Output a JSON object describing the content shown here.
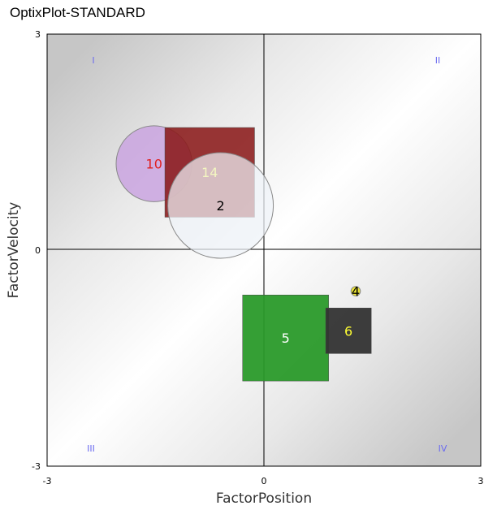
{
  "title": "OptixPlot-STANDARD",
  "chart_data": {
    "type": "scatter",
    "xlabel": "FactorPosition",
    "ylabel": "FactorVelocity",
    "xlim": [
      -3,
      3
    ],
    "ylim": [
      -3,
      3
    ],
    "xticks": [
      "-3",
      "0",
      "3"
    ],
    "yticks": [
      "3",
      "0",
      "-3"
    ],
    "quadrants": [
      "I",
      "II",
      "III",
      "IV"
    ],
    "points": [
      {
        "label": "10",
        "shape": "circle",
        "x": -1.52,
        "y": 1.2,
        "size": 1.05,
        "fill": "#c8a0e0",
        "label_color": "#e02020"
      },
      {
        "label": "14",
        "shape": "square",
        "x": -0.75,
        "y": 1.08,
        "size": 1.24,
        "fill": "#8b1a1a",
        "label_color": "#ffff33"
      },
      {
        "label": "2",
        "shape": "circle",
        "x": -0.6,
        "y": 0.62,
        "size": 1.46,
        "fill": "#eef2f8",
        "label_color": "#000000"
      },
      {
        "label": "4",
        "shape": "circle",
        "x": 1.27,
        "y": -0.57,
        "size": 0.13,
        "fill": "#e8e020",
        "label_color": "#000000"
      },
      {
        "label": "5",
        "shape": "square",
        "x": 0.3,
        "y": -1.22,
        "size": 1.19,
        "fill": "#2a9a2a",
        "label_color": "#ffffff"
      },
      {
        "label": "6",
        "shape": "square",
        "x": 1.17,
        "y": -1.12,
        "size": 0.63,
        "fill": "#333333",
        "label_color": "#ffff33"
      }
    ],
    "grid": false
  }
}
